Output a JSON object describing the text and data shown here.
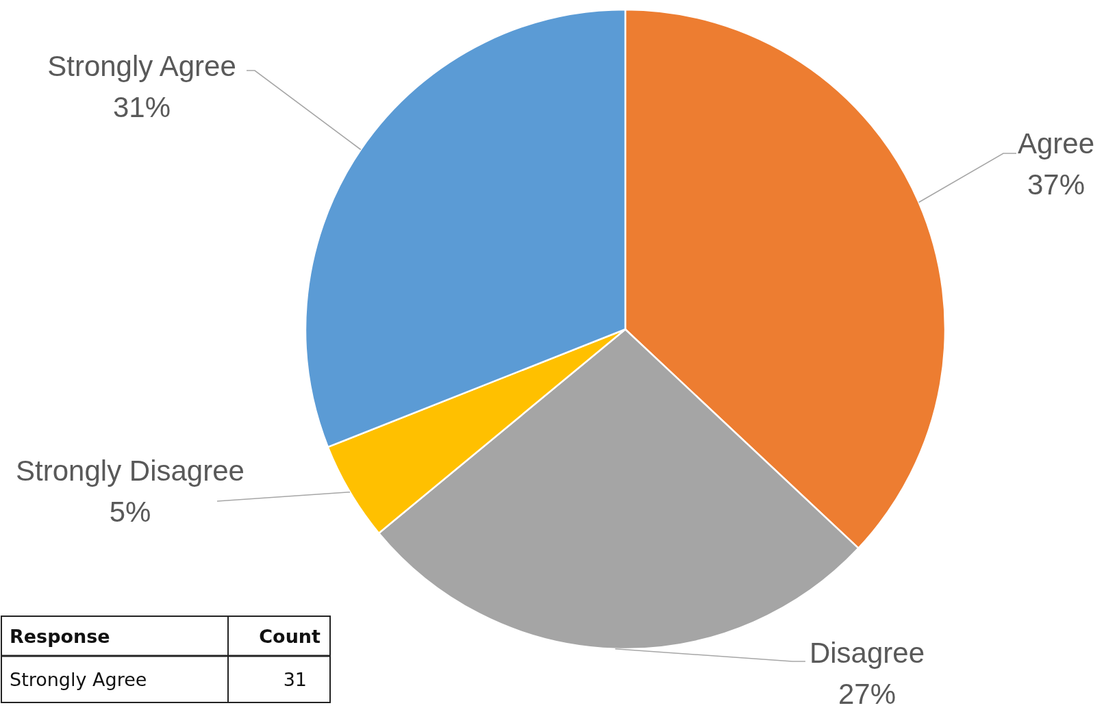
{
  "chart_data": [
    {
      "type": "pie",
      "categories": [
        "Agree",
        "Disagree",
        "Strongly Disagree",
        "Strongly Agree"
      ],
      "values": [
        37,
        27,
        5,
        31
      ],
      "value_labels": [
        "37%",
        "27%",
        "5%",
        "31%"
      ],
      "colors": [
        "#ed7d31",
        "#a5a5a5",
        "#ffc000",
        "#5b9bd5"
      ]
    },
    {
      "type": "other",
      "xlabel": "Response",
      "ylabel": "Count",
      "categories": [
        "Strongly Agree"
      ],
      "values": [
        31
      ],
      "data_labels": true
    }
  ]
}
